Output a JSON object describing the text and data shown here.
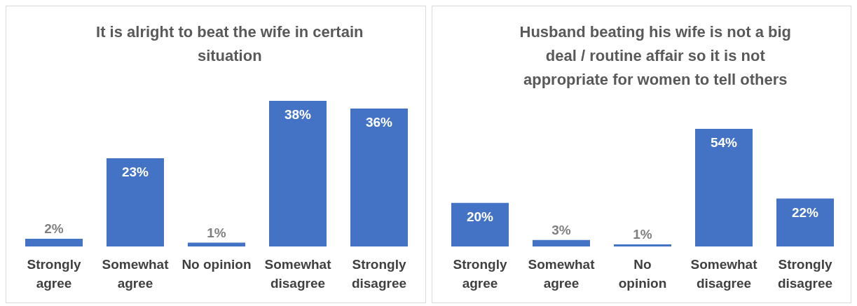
{
  "chart_data": [
    {
      "type": "bar",
      "title": "It is alright to beat the wife in certain situation",
      "categories": [
        "Strongly agree",
        "Somewhat agree",
        "No opinion",
        "Somewhat disagree",
        "Strongly disagree"
      ],
      "values": [
        2,
        23,
        1,
        38,
        36
      ],
      "value_labels": [
        "2%",
        "23%",
        "1%",
        "38%",
        "36%"
      ],
      "color": "#4472c4"
    },
    {
      "type": "bar",
      "title": "Husband beating his wife is not a big deal / routine affair so it is not appropriate for women to tell others",
      "categories": [
        "Strongly agree",
        "Somewhat agree",
        "No opinion",
        "Somewhat disagree",
        "Strongly disagree"
      ],
      "values": [
        20,
        3,
        1,
        54,
        22
      ],
      "value_labels": [
        "20%",
        "3%",
        "1%",
        "54%",
        "22%"
      ],
      "color": "#4472c4"
    }
  ]
}
